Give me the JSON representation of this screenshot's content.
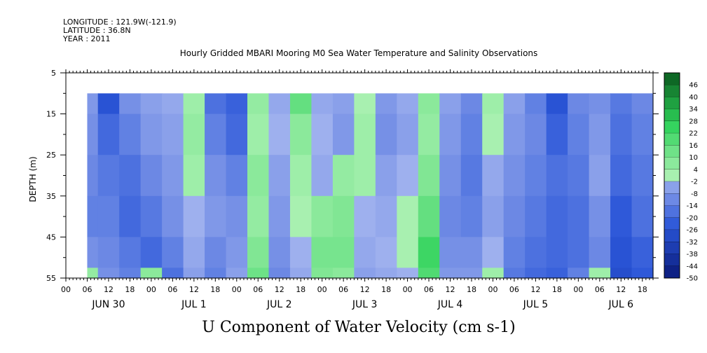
{
  "header": {
    "longitude": "LONGITUDE : 121.9W(-121.9)",
    "latitude": "LATITUDE : 36.8N",
    "year": "YEAR : 2011"
  },
  "colors": {
    "neg_deep": "#0a1a7a",
    "neg_mid": "#2a55d8",
    "neg_light": "#a8b8f0",
    "pos_light": "#a8f0b0",
    "pos_mid": "#2ed25a",
    "pos_deep": "#0a5a1e"
  },
  "chart_data": {
    "type": "heatmap",
    "title": "Hourly Gridded MBARI Mooring M0 Sea Water Temperature and Salinity Observations",
    "xlabel": "U Component of Water Velocity (cm s-1)",
    "ylabel": "DEPTH (m)",
    "ylim": [
      55,
      5
    ],
    "y_ticks": [
      5,
      15,
      25,
      35,
      45,
      55
    ],
    "y_ticks_minor": [
      10,
      20,
      30,
      40,
      50
    ],
    "data_depth_range": [
      10,
      55
    ],
    "x_hours": [
      "00",
      "06",
      "12",
      "18"
    ],
    "x_start_hour": 0,
    "x_end_hour": 165,
    "data_start_hour": 6,
    "x_days": [
      "JUN 30",
      "JUL  1",
      "JUL  2",
      "JUL  3",
      "JUL  4",
      "JUL  5",
      "JUL  6"
    ],
    "colorbar_labels": [
      "46",
      "40",
      "34",
      "28",
      "22",
      "16",
      "10",
      "4",
      "-2",
      "-8",
      "-14",
      "-20",
      "-26",
      "-32",
      "-38",
      "-44",
      "-50"
    ],
    "colorbar_range": [
      -50,
      50
    ],
    "depths": [
      10,
      20,
      30,
      40,
      50,
      55
    ],
    "hours": [
      6,
      12,
      18,
      24,
      30,
      36,
      42,
      48,
      54,
      60,
      66,
      72,
      78,
      84,
      90,
      96,
      102,
      108,
      114,
      120,
      126,
      132,
      138,
      144,
      150,
      156,
      162
    ],
    "values": [
      [
        -8,
        -26,
        -10,
        -6,
        -4,
        2,
        -18,
        -22,
        4,
        -4,
        14,
        -4,
        -6,
        0,
        -8,
        -4,
        6,
        -6,
        -12,
        2,
        -6,
        -14,
        -26,
        -12,
        -10,
        -16,
        -12
      ],
      [
        -10,
        -20,
        -14,
        -8,
        -6,
        4,
        -14,
        -20,
        2,
        -2,
        6,
        -2,
        -8,
        2,
        -10,
        -6,
        4,
        -8,
        -14,
        0,
        -8,
        -12,
        -22,
        -14,
        -8,
        -18,
        -14
      ],
      [
        -12,
        -16,
        -18,
        -12,
        -8,
        2,
        -10,
        -14,
        6,
        -6,
        2,
        -4,
        4,
        2,
        -6,
        -2,
        8,
        -10,
        -16,
        -4,
        -10,
        -14,
        -18,
        -16,
        -6,
        -20,
        -16
      ],
      [
        -14,
        -14,
        -20,
        -16,
        -10,
        -2,
        -8,
        -10,
        4,
        -8,
        0,
        6,
        8,
        -2,
        -4,
        0,
        14,
        -12,
        -14,
        -6,
        -12,
        -16,
        -20,
        -18,
        -10,
        -24,
        -18
      ],
      [
        -10,
        -12,
        -16,
        -20,
        -14,
        -4,
        -12,
        -8,
        8,
        -10,
        -2,
        10,
        10,
        -4,
        -2,
        0,
        22,
        -10,
        -10,
        -2,
        -14,
        -18,
        -20,
        -18,
        -12,
        -26,
        -22
      ],
      [
        4,
        -10,
        -14,
        6,
        -18,
        -6,
        -14,
        -6,
        12,
        -12,
        -4,
        8,
        6,
        -6,
        -4,
        -2,
        18,
        -8,
        -8,
        2,
        -16,
        -20,
        -22,
        -14,
        2,
        -28,
        -24
      ]
    ]
  }
}
